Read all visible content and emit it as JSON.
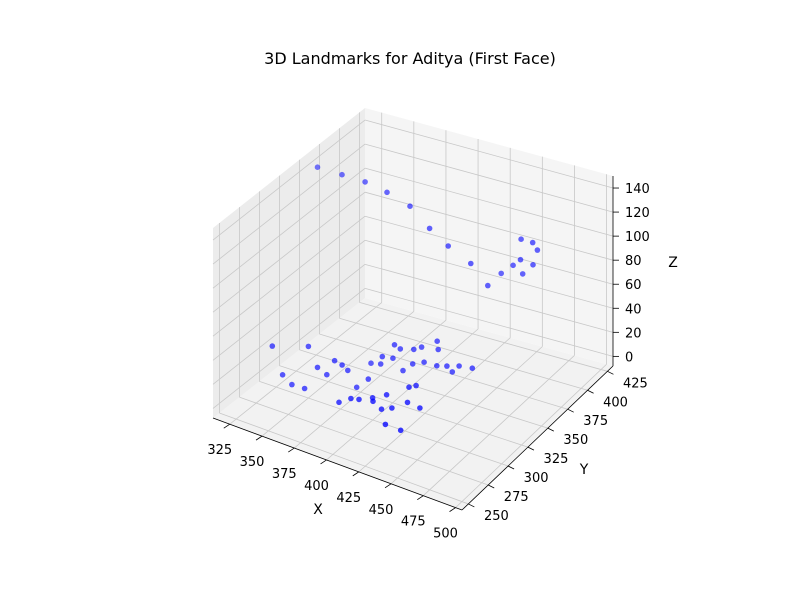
{
  "chart_data": {
    "type": "scatter",
    "title": "3D Landmarks for Aditya (First Face)",
    "xlabel": "X",
    "ylabel": "Y",
    "zlabel": "Z",
    "x_ticks": [
      "325",
      "350",
      "375",
      "400",
      "425",
      "450",
      "475",
      "500"
    ],
    "y_ticks": [
      "250",
      "275",
      "300",
      "325",
      "350",
      "375",
      "400",
      "425"
    ],
    "z_ticks": [
      "0",
      "20",
      "40",
      "60",
      "80",
      "100",
      "120",
      "140"
    ],
    "xlim": [
      312,
      505
    ],
    "ylim": [
      242,
      432
    ],
    "zlim": [
      -8,
      150
    ],
    "grid": true,
    "marker_color": "#0000ff",
    "points": [
      {
        "x": 318,
        "y": 363,
        "z": 139
      },
      {
        "x": 337,
        "y": 363,
        "z": 139
      },
      {
        "x": 355,
        "y": 363,
        "z": 139
      },
      {
        "x": 372,
        "y": 363,
        "z": 136
      },
      {
        "x": 388,
        "y": 366,
        "z": 128
      },
      {
        "x": 402,
        "y": 368,
        "z": 113
      },
      {
        "x": 414,
        "y": 372,
        "z": 100
      },
      {
        "x": 426,
        "y": 381,
        "z": 84
      },
      {
        "x": 433,
        "y": 391,
        "z": 62
      },
      {
        "x": 436,
        "y": 403,
        "z": 66
      },
      {
        "x": 444,
        "y": 405,
        "z": 74
      },
      {
        "x": 451,
        "y": 403,
        "z": 82
      },
      {
        "x": 449,
        "y": 407,
        "z": 96
      },
      {
        "x": 458,
        "y": 407,
        "z": 96
      },
      {
        "x": 461,
        "y": 408,
        "z": 90
      },
      {
        "x": 457,
        "y": 409,
        "z": 76
      },
      {
        "x": 449,
        "y": 409,
        "z": 66
      },
      {
        "x": 322,
        "y": 300,
        "z": 25
      },
      {
        "x": 330,
        "y": 300,
        "z": 4
      },
      {
        "x": 336,
        "y": 302,
        "z": -3
      },
      {
        "x": 344,
        "y": 305,
        "z": -5
      },
      {
        "x": 342,
        "y": 313,
        "z": 25
      },
      {
        "x": 349,
        "y": 313,
        "z": 10
      },
      {
        "x": 355,
        "y": 315,
        "z": 5
      },
      {
        "x": 365,
        "y": 318,
        "z": 15
      },
      {
        "x": 358,
        "y": 320,
        "z": 15
      },
      {
        "x": 367,
        "y": 322,
        "z": 9
      },
      {
        "x": 381,
        "y": 325,
        "z": 5
      },
      {
        "x": 372,
        "y": 325,
        "z": -5
      },
      {
        "x": 372,
        "y": 343,
        "z": 5
      },
      {
        "x": 382,
        "y": 339,
        "z": 10
      },
      {
        "x": 382,
        "y": 341,
        "z": 15
      },
      {
        "x": 389,
        "y": 343,
        "z": 15
      },
      {
        "x": 395,
        "y": 346,
        "z": 5
      },
      {
        "x": 400,
        "y": 350,
        "z": 10
      },
      {
        "x": 407,
        "y": 353,
        "z": 12
      },
      {
        "x": 415,
        "y": 356,
        "z": 10
      },
      {
        "x": 421,
        "y": 359,
        "z": 10
      },
      {
        "x": 424,
        "y": 361,
        "z": 5
      },
      {
        "x": 428,
        "y": 363,
        "z": 10
      },
      {
        "x": 437,
        "y": 365,
        "z": 10
      },
      {
        "x": 411,
        "y": 363,
        "z": 25
      },
      {
        "x": 413,
        "y": 361,
        "z": 20
      },
      {
        "x": 402,
        "y": 358,
        "z": 20
      },
      {
        "x": 399,
        "y": 353,
        "z": 20
      },
      {
        "x": 391,
        "y": 349,
        "z": 20
      },
      {
        "x": 389,
        "y": 345,
        "z": 25
      },
      {
        "x": 380,
        "y": 290,
        "z": 5
      },
      {
        "x": 388,
        "y": 292,
        "z": 10
      },
      {
        "x": 393,
        "y": 294,
        "z": 10
      },
      {
        "x": 402,
        "y": 297,
        "z": 10
      },
      {
        "x": 408,
        "y": 298,
        "z": 5
      },
      {
        "x": 413,
        "y": 303,
        "z": 5
      },
      {
        "x": 416,
        "y": 290,
        "z": 0
      },
      {
        "x": 426,
        "y": 293,
        "z": -3
      },
      {
        "x": 398,
        "y": 303,
        "z": 8
      },
      {
        "x": 407,
        "y": 306,
        "z": 12
      },
      {
        "x": 422,
        "y": 308,
        "z": 10
      },
      {
        "x": 431,
        "y": 309,
        "z": 8
      },
      {
        "x": 417,
        "y": 318,
        "z": 15
      },
      {
        "x": 420,
        "y": 322,
        "z": 15
      }
    ]
  }
}
